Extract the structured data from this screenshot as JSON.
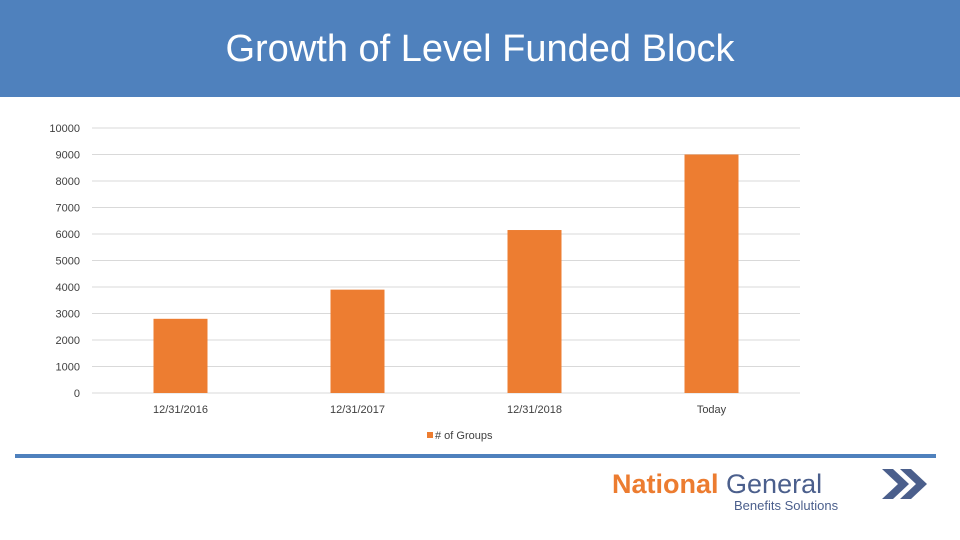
{
  "slide": {
    "title": "Growth of Level Funded Block"
  },
  "logo": {
    "word1": "National",
    "word2": "General",
    "tagline": "Benefits Solutions",
    "icon": "double-chevron-right-icon"
  },
  "colors": {
    "banner": "#4f81bd",
    "bar": "#ed7d31",
    "gridline": "#d9d9d9",
    "logo_orange": "#ec7c30",
    "logo_blue": "#4b5f8c"
  },
  "chart_data": {
    "type": "bar",
    "title": "",
    "xlabel": "",
    "ylabel": "",
    "categories": [
      "12/31/2016",
      "12/31/2017",
      "12/31/2018",
      "Today"
    ],
    "series": [
      {
        "name": "# of Groups",
        "values": [
          2800,
          3900,
          6150,
          9000
        ]
      }
    ],
    "ylim": [
      0,
      10000
    ],
    "yticks": [
      0,
      1000,
      2000,
      3000,
      4000,
      5000,
      6000,
      7000,
      8000,
      9000,
      10000
    ],
    "grid": true,
    "legend": "bottom"
  }
}
